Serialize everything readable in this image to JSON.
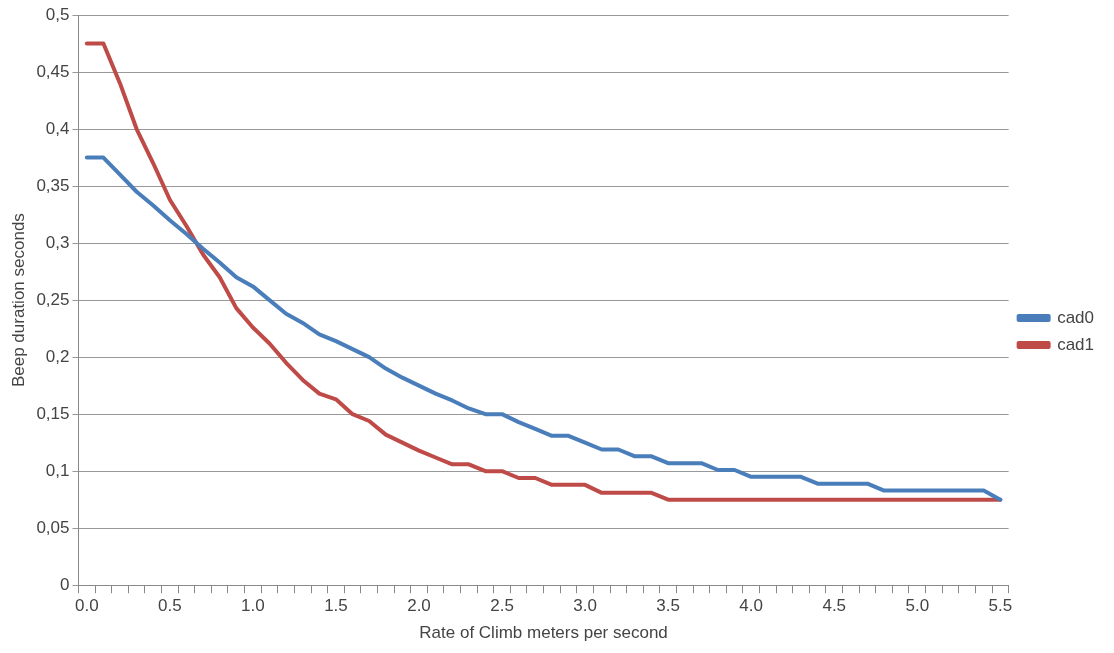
{
  "chart_data": {
    "type": "line",
    "xlabel": "Rate of Climb meters per second",
    "ylabel": "Beep duration seconds",
    "categories": [
      "0.0",
      null,
      null,
      null,
      null,
      "0.5",
      null,
      null,
      null,
      null,
      "1.0",
      null,
      null,
      null,
      null,
      "1.5",
      null,
      null,
      null,
      null,
      "2.0",
      null,
      null,
      null,
      null,
      "2.5",
      null,
      null,
      null,
      null,
      "3.0",
      null,
      null,
      null,
      null,
      "3.5",
      null,
      null,
      null,
      null,
      "4.0",
      null,
      null,
      null,
      null,
      "4.5",
      null,
      null,
      null,
      null,
      "5.0",
      null,
      null,
      null,
      null,
      "5.5"
    ],
    "series": [
      {
        "name": "cad0",
        "color": "#4a7ebb",
        "values": [
          0.375,
          0.375,
          0.36,
          0.345,
          0.333,
          0.32,
          0.308,
          0.295,
          0.283,
          0.27,
          0.262,
          0.25,
          0.238,
          0.23,
          0.22,
          0.214,
          0.207,
          0.2,
          0.19,
          0.182,
          0.175,
          0.168,
          0.162,
          0.155,
          0.15,
          0.15,
          0.143,
          0.137,
          0.131,
          0.131,
          0.125,
          0.119,
          0.119,
          0.113,
          0.113,
          0.107,
          0.107,
          0.107,
          0.101,
          0.101,
          0.095,
          0.095,
          0.095,
          0.095,
          0.089,
          0.089,
          0.089,
          0.089,
          0.083,
          0.083,
          0.083,
          0.083,
          0.083,
          0.083,
          0.083,
          0.075
        ]
      },
      {
        "name": "cad1",
        "color": "#be4b48",
        "values": [
          0.475,
          0.475,
          0.44,
          0.4,
          0.37,
          0.338,
          0.315,
          0.29,
          0.27,
          0.243,
          0.226,
          0.212,
          0.195,
          0.18,
          0.168,
          0.163,
          0.15,
          0.144,
          0.132,
          0.125,
          0.118,
          0.112,
          0.106,
          0.106,
          0.1,
          0.1,
          0.094,
          0.094,
          0.088,
          0.088,
          0.088,
          0.081,
          0.081,
          0.081,
          0.081,
          0.075,
          0.075,
          0.075,
          0.075,
          0.075,
          0.075,
          0.075,
          0.075,
          0.075,
          0.075,
          0.075,
          0.075,
          0.075,
          0.075,
          0.075,
          0.075,
          0.075,
          0.075,
          0.075,
          0.075,
          0.075
        ]
      }
    ],
    "ylim": [
      0,
      0.5
    ],
    "yticks": [
      {
        "value": 0,
        "label": "0"
      },
      {
        "value": 0.05,
        "label": "0,05"
      },
      {
        "value": 0.1,
        "label": "0,1"
      },
      {
        "value": 0.15,
        "label": "0,15"
      },
      {
        "value": 0.2,
        "label": "0,2"
      },
      {
        "value": 0.25,
        "label": "0,25"
      },
      {
        "value": 0.3,
        "label": "0,3"
      },
      {
        "value": 0.35,
        "label": "0,35"
      },
      {
        "value": 0.4,
        "label": "0,4"
      },
      {
        "value": 0.45,
        "label": "0,45"
      },
      {
        "value": 0.5,
        "label": "0,5"
      }
    ],
    "grid": "y",
    "legend": "right",
    "marker": "none",
    "line_style": "solid"
  }
}
